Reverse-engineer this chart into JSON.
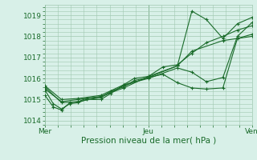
{
  "bg_color": "#cce8d8",
  "plot_bg_color": "#d8f0e8",
  "grid_color": "#a0c8b0",
  "line_color": "#1a6b2a",
  "title": "Pression niveau de la mer( hPa )",
  "xtick_labels": [
    "Mer",
    "Jeu",
    "Ven"
  ],
  "xtick_positions": [
    0.0,
    0.5,
    1.0
  ],
  "ylim": [
    1013.8,
    1019.5
  ],
  "yticks": [
    1014,
    1015,
    1016,
    1017,
    1018,
    1019
  ],
  "series": [
    [
      0.0,
      1015.45,
      0.04,
      1014.8,
      0.08,
      1014.55,
      0.12,
      1014.8,
      0.16,
      1014.85,
      0.2,
      1015.0,
      0.27,
      1015.0,
      0.32,
      1015.3,
      0.38,
      1015.7,
      0.43,
      1016.0,
      0.5,
      1016.1,
      0.57,
      1016.55,
      0.64,
      1016.65,
      0.71,
      1017.2,
      0.78,
      1017.7,
      0.86,
      1018.0,
      0.93,
      1018.3,
      1.0,
      1018.5
    ],
    [
      0.0,
      1015.2,
      0.04,
      1014.65,
      0.08,
      1014.5,
      0.12,
      1014.85,
      0.16,
      1014.9,
      0.2,
      1015.05,
      0.27,
      1015.1,
      0.32,
      1015.4,
      0.38,
      1015.6,
      0.43,
      1015.9,
      0.5,
      1016.05,
      0.57,
      1016.2,
      0.64,
      1015.8,
      0.71,
      1015.55,
      0.78,
      1015.5,
      0.86,
      1015.55,
      0.93,
      1017.9,
      1.0,
      1018.1
    ],
    [
      0.0,
      1015.6,
      0.08,
      1014.85,
      0.16,
      1014.9,
      0.27,
      1015.1,
      0.38,
      1015.65,
      0.5,
      1016.05,
      0.64,
      1016.6,
      0.71,
      1017.3,
      0.86,
      1017.8,
      1.0,
      1018.0
    ],
    [
      0.0,
      1015.5,
      0.08,
      1014.9,
      0.16,
      1015.0,
      0.27,
      1015.15,
      0.38,
      1015.55,
      0.5,
      1016.1,
      0.64,
      1016.6,
      0.71,
      1019.2,
      0.78,
      1018.8,
      0.86,
      1017.9,
      0.93,
      1018.6,
      1.0,
      1018.9
    ],
    [
      0.0,
      1015.65,
      0.08,
      1015.0,
      0.16,
      1015.05,
      0.27,
      1015.2,
      0.38,
      1015.7,
      0.5,
      1016.0,
      0.64,
      1016.5,
      0.71,
      1016.3,
      0.78,
      1015.85,
      0.86,
      1016.05,
      0.93,
      1018.0,
      1.0,
      1018.65
    ]
  ]
}
